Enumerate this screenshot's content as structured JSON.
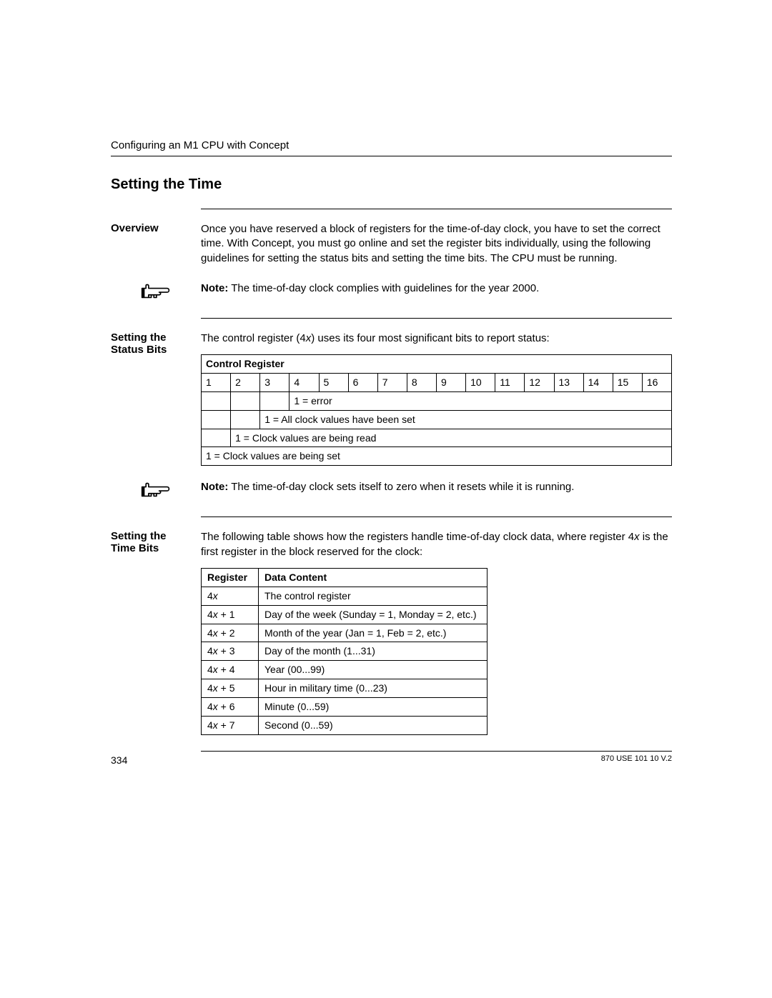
{
  "header": {
    "runningTitle": "Configuring an M1 CPU with Concept"
  },
  "title": "Setting the Time",
  "overview": {
    "label": "Overview",
    "body": "Once you have reserved a block of registers for the time-of-day clock, you have to set the correct time. With Concept, you must go online and set the register bits individually, using the following guidelines for setting the status bits and setting the time bits. The CPU must be running."
  },
  "note1": {
    "prefix": "Note:",
    "body": "The time-of-day clock complies with guidelines for the year 2000."
  },
  "statusBits": {
    "label": "Setting the Status Bits",
    "intro_a": "The control register (4",
    "intro_x": "x",
    "intro_b": ") uses its four most significant bits to report status:",
    "tableTitle": "Control Register",
    "bitNumbers": [
      "1",
      "2",
      "3",
      "4",
      "5",
      "6",
      "7",
      "8",
      "9",
      "10",
      "11",
      "12",
      "13",
      "14",
      "15",
      "16"
    ],
    "row_err": "1 = error",
    "row_allset": "1 = All clock values have been set",
    "row_read": "1 = Clock values are being read",
    "row_set": "1 = Clock values are being set"
  },
  "note2": {
    "prefix": "Note:",
    "body": "The time-of-day clock sets itself to zero when it resets while it is running."
  },
  "timeBits": {
    "label": "Setting the Time Bits",
    "intro_a": "The following table shows how the registers handle time-of-day clock data, where register 4",
    "intro_x": "x",
    "intro_b": " is the first register in the block reserved for the clock:",
    "col1": "Register",
    "col2": "Data Content",
    "rows": [
      {
        "reg_a": "4",
        "reg_x": "x",
        "reg_b": "",
        "content": "The control register"
      },
      {
        "reg_a": "4",
        "reg_x": "x",
        "reg_b": " + 1",
        "content": "Day of the week (Sunday = 1, Monday = 2, etc.)"
      },
      {
        "reg_a": "4",
        "reg_x": "x",
        "reg_b": " + 2",
        "content": "Month of the year (Jan = 1, Feb = 2, etc.)"
      },
      {
        "reg_a": "4",
        "reg_x": "x",
        "reg_b": " + 3",
        "content": "Day of the month (1...31)"
      },
      {
        "reg_a": "4",
        "reg_x": "x",
        "reg_b": " + 4",
        "content": "Year (00...99)"
      },
      {
        "reg_a": "4",
        "reg_x": "x",
        "reg_b": " + 5",
        "content": "Hour in military time (0...23)"
      },
      {
        "reg_a": "4",
        "reg_x": "x",
        "reg_b": " + 6",
        "content": "Minute (0...59)"
      },
      {
        "reg_a": "4",
        "reg_x": "x",
        "reg_b": " + 7",
        "content": "Second (0...59)"
      }
    ]
  },
  "footer": {
    "pageNum": "334",
    "docId": "870 USE 101 10 V.2"
  }
}
